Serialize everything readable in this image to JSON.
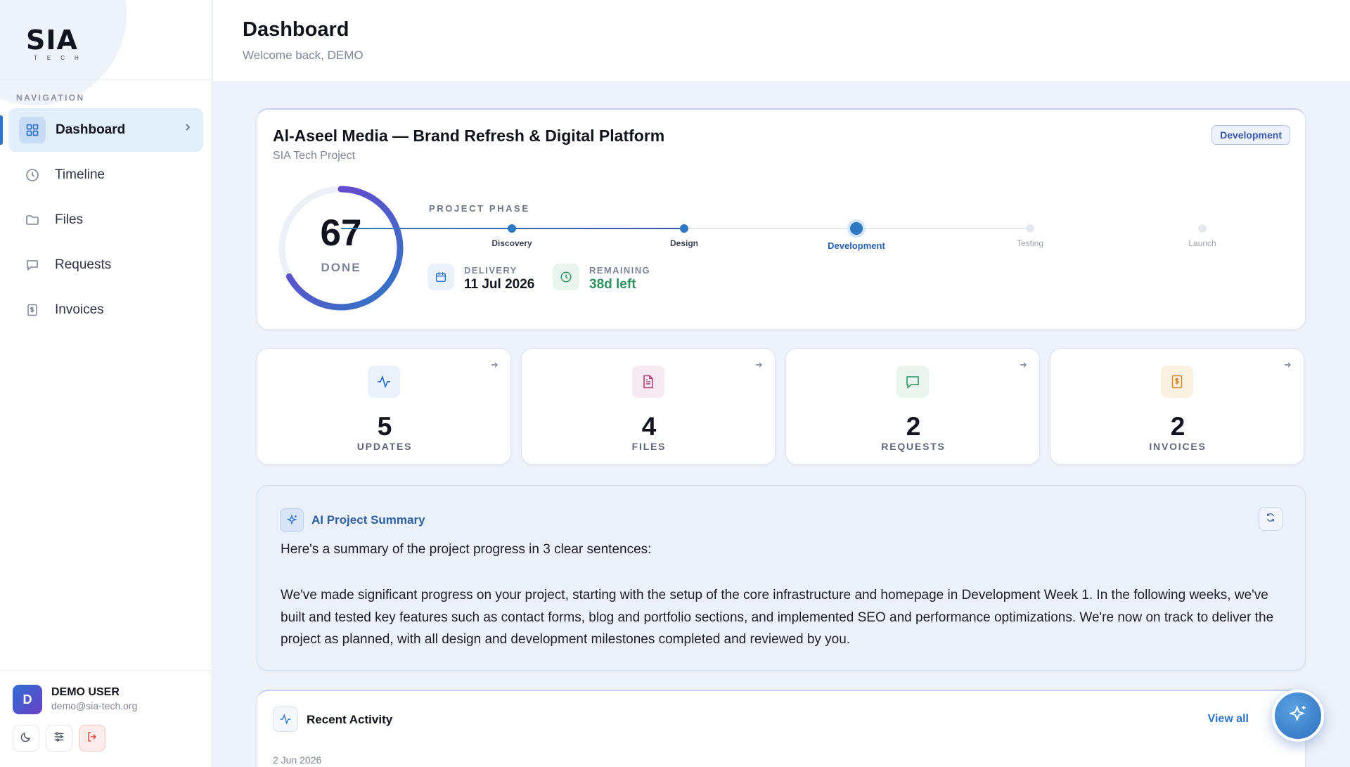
{
  "brand": {
    "logo_text": "SIA",
    "logo_sub": "TECH"
  },
  "sidebar": {
    "heading": "NAVIGATION",
    "items": [
      {
        "label": "Dashboard",
        "icon": "grid-icon",
        "active": true
      },
      {
        "label": "Timeline",
        "icon": "clock-icon",
        "active": false
      },
      {
        "label": "Files",
        "icon": "folder-icon",
        "active": false
      },
      {
        "label": "Requests",
        "icon": "chat-icon",
        "active": false
      },
      {
        "label": "Invoices",
        "icon": "invoice-icon",
        "active": false
      }
    ],
    "user": {
      "initial": "D",
      "name": "DEMO USER",
      "email": "demo@sia-tech.org"
    },
    "footer_buttons": [
      "moon-icon",
      "sliders-icon",
      "logout-icon"
    ]
  },
  "header": {
    "title": "Dashboard",
    "subtitle": "Welcome back, DEMO"
  },
  "project": {
    "title": "Al-Aseel Media — Brand Refresh & Digital Platform",
    "subtitle": "SIA Tech Project",
    "badge": "Development",
    "progress": 67,
    "progress_label": "DONE",
    "phase_heading": "PROJECT PHASE",
    "phases": [
      "Discovery",
      "Design",
      "Development",
      "Testing",
      "Launch"
    ],
    "current_phase_index": 2,
    "delivery_label": "DELIVERY",
    "delivery_value": "11 Jul 2026",
    "remaining_label": "REMAINING",
    "remaining_value": "38d left"
  },
  "stats": [
    {
      "value": "5",
      "label": "UPDATES",
      "icon": "activity-icon",
      "color": "#2f73c8"
    },
    {
      "value": "4",
      "label": "FILES",
      "icon": "file-icon",
      "color": "#b0407e"
    },
    {
      "value": "2",
      "label": "REQUESTS",
      "icon": "chat-icon",
      "color": "#2f9062"
    },
    {
      "value": "2",
      "label": "INVOICES",
      "icon": "invoice-icon",
      "color": "#d08a2a"
    }
  ],
  "ai_summary": {
    "title": "AI Project Summary",
    "intro": "Here's a summary of the project progress in 3 clear sentences:",
    "body": "We've made significant progress on your project, starting with the setup of the core infrastructure and homepage in Development Week 1. In the following weeks, we've built and tested key features such as contact forms, blog and portfolio sections, and implemented SEO and performance optimizations. We're now on track to deliver the project as planned, with all design and development milestones completed and reviewed by you."
  },
  "activity": {
    "title": "Recent Activity",
    "view_all": "View all",
    "first_date": "2 Jun 2026"
  },
  "colors": {
    "accent": "#2f73c8",
    "success": "#2f9062",
    "donut_start": "#2f78c4",
    "donut_end": "#7a3bd1"
  }
}
